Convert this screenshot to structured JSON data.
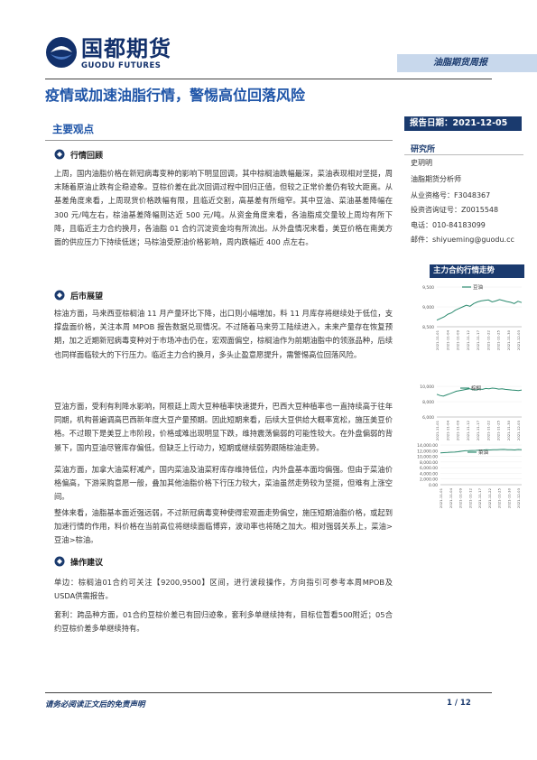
{
  "header": {
    "logo_cn": "国都期货",
    "logo_en": "GUODU FUTURES",
    "report_type": "油脂期货周报"
  },
  "title": "疫情或加速油脂行情，警惕高位回落风险",
  "report_date": "报告日期：2021-12-05",
  "main_view": {
    "heading": "主要观点",
    "review": {
      "heading": "行情回顾",
      "text": "上周，国内油脂价格在新冠病毒变种的影响下明显回调，其中棕榈油跌幅最深，菜油表现相对坚挺，周末随着原油止跌有企稳迹象。豆棕价差在此次回调过程中回归正值，但较之正常价差仍有较大距离。从基差角度来看，上周现货价格跌幅有限，且临近交割，高基差有所缩窄。其中豆油、菜油基差降幅在 300 元/吨左右，棕油基差降幅则达近 500 元/吨。从资金角度来看，各油脂成交量较上周均有所下降，且临近主力合约换月，各油脂 01 合约沉淀资金均有所流出。从外盘情况来看，美豆价格在南美方面的供应压力下持续低迷；马棕油受原油价格影响，周内跌幅近 400 点左右。"
    },
    "outlook": {
      "heading": "后市展望",
      "p1": "棕油方面，马来西亚棕榈油 11 月产量环比下降，出口则小幅增加，料 11 月库存将继续处于低位，支撑盘面价格，关注本周 MPOB 报告数据兑现情况。不过随着马来劳工陆续进入，未来产量存在恢复预期，加之近期新冠病毒变种对于市场冲击仍在，宏观面偏空，棕榈油作为前期油脂中的领涨品种，后续也同样面临较大的下行压力。临近主力合约换月，多头止盈意愿提升，需警惕高位回落风险。",
      "p2": "豆油方面，受利有利降水影响，阿根廷上周大豆种植率快速提升，巴西大豆种植率也一直持续高于往年同期，机构普遍调高巴西新年度大豆产量预期。因此短期来看，后续大豆供给大概率宽松，施压美豆价格。不过眼下是美豆上市阶段，价格或难出现明显下跌，维持震荡偏弱的可能性较大。在外盘偏弱的背景下，国内豆油尽管库存偏低，但缺乏上行动力，短期或继续弱势跟随棕油走势。",
      "p3": "菜油方面，加拿大油菜籽减产，国内菜油及油菜籽库存维持低位，内外盘基本面均偏强。但由于菜油价格偏高，下游采购意愿一般，叠加其他油脂价格下行压力较大，菜油虽然走势较为坚挺，但难有上涨空间。",
      "p4": "整体来看，油脂基本面近强远弱，不过新冠病毒变种使得宏观面走势偏空，施压短期油脂价格，或起到加速行情的作用，料价格在当前高位将继续面临博弈，波动率也将随之加大。相对强弱关系上，菜油>豆油>棕油。"
    },
    "advice": {
      "heading": "操作建议",
      "p1": "单边：棕榈油01合约可关注【9200,9500】区间，进行波段操作，方向指引可参考本周MPOB及USDA供需报告。",
      "p2": "套利：跨品种方面，01合约豆棕价差已有回归迹象，套利多单继续持有，目标位暂看500附近；05合约豆棕价差多单继续持有。"
    }
  },
  "analyst": {
    "heading": "研究所",
    "name": "史玥明",
    "role": "油脂期货分析师",
    "qual": "从业资格号：F3048367",
    "consult": "投资咨询证号：Z0015548",
    "phone": "电话：010-84183099",
    "email": "邮件：shiyueming@guodu.cc"
  },
  "chart_section_title": "主力合约行情走势",
  "chart_data": [
    {
      "type": "line",
      "series": [
        {
          "name": "豆油",
          "values": [
            8600,
            8650,
            8700,
            8780,
            8820,
            8900,
            8950,
            9000,
            9050,
            9020,
            9100,
            9150,
            9180,
            9200,
            9210,
            9150,
            9180,
            9220,
            9190,
            9160,
            9140,
            9100,
            9170,
            9130
          ]
        }
      ],
      "yticks": [
        "9,500",
        "9,000",
        "8,500"
      ],
      "ylim": [
        8400,
        9600
      ],
      "xlabels": [
        "2021-11-01",
        "2021-11-04",
        "2021-11-09",
        "2021-11-12",
        "2021-11-17",
        "2021-11-22",
        "2021-11-25",
        "2021-11-30",
        "2021-12-03"
      ]
    },
    {
      "type": "line",
      "series": [
        {
          "name": "棕榈",
          "values": [
            9200,
            9000,
            8900,
            9100,
            9300,
            9500,
            9700,
            9800,
            9900,
            10000,
            10100,
            9950,
            9900,
            10050,
            10000,
            10150,
            10100,
            10200,
            10150,
            10050,
            10100,
            10000,
            9950,
            9900,
            9850,
            9800,
            9900
          ]
        }
      ],
      "yticks": [
        "10,000",
        "8,000",
        "6,000"
      ],
      "ylim": [
        5500,
        10500
      ],
      "xlabels": [
        "2021-11-01",
        "2021-11-04",
        "2021-11-09",
        "2021-11-12",
        "2021-11-17",
        "2021-11-22",
        "2021-11-25",
        "2021-11-30",
        "2021-12-03"
      ]
    },
    {
      "type": "line",
      "series": [
        {
          "name": "菜油",
          "values": [
            11200,
            11300,
            11350,
            11450,
            11500,
            11600,
            11800,
            11950,
            12000,
            12050,
            12100,
            12150,
            12200,
            12300,
            12250,
            12350,
            12300,
            12400,
            12450,
            12350,
            12300,
            12250,
            12400,
            12350
          ]
        }
      ],
      "yticks": [
        "14,000.00",
        "12,000.00",
        "10,000.00",
        "8,000.00",
        "6,000.00",
        "4,000.00",
        "2,000.00",
        "0.00"
      ],
      "ylim": [
        0,
        14000
      ],
      "xlabels": [
        "2021-11-01",
        "2021-11-04",
        "2021-11-09",
        "2021-11-12",
        "2021-11-17",
        "2021-11-22",
        "2021-11-25",
        "2021-11-30",
        "2021-12-03"
      ]
    }
  ],
  "colors": {
    "primary": "#1a3a6e",
    "title": "#1f55a8",
    "line": "#2a8a6e"
  },
  "footer": {
    "disclaimer": "请务必阅读正文后的免责声明",
    "page": "1 / 12"
  }
}
